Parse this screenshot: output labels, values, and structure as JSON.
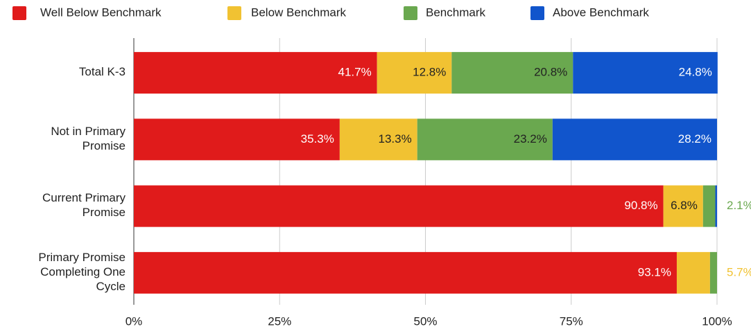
{
  "chart_data": {
    "type": "stacked-bar",
    "orientation": "horizontal",
    "categories": [
      "Total K-3",
      "Not in Primary\nPromise",
      "Current Primary\nPromise",
      "Primary Promise\nCompleting One\nCycle"
    ],
    "series": [
      {
        "name": "Well Below Benchmark",
        "color": "#e01b1b",
        "values": [
          41.7,
          35.3,
          90.8,
          93.1
        ],
        "value_labels": [
          "41.7%",
          "35.3%",
          "90.8%",
          "93.1%"
        ]
      },
      {
        "name": "Below Benchmark",
        "color": "#f1c232",
        "values": [
          12.8,
          13.3,
          6.8,
          5.7
        ],
        "value_labels": [
          "12.8%",
          "13.3%",
          "6.8%",
          "5.7%"
        ]
      },
      {
        "name": "Benchmark",
        "color": "#6aa84f",
        "values": [
          20.8,
          23.2,
          2.1,
          1.2
        ],
        "value_labels": [
          "20.8%",
          "23.2%",
          "2.1%",
          null
        ]
      },
      {
        "name": "Above Benchmark",
        "color": "#1155cc",
        "values": [
          24.8,
          28.2,
          0.3,
          0
        ],
        "value_labels": [
          "24.8%",
          "28.2%",
          null,
          null
        ]
      }
    ],
    "xlim": [
      0,
      100
    ],
    "xticks": [
      {
        "value": 0,
        "label": "0%"
      },
      {
        "value": 25,
        "label": "25%"
      },
      {
        "value": 50,
        "label": "50%"
      },
      {
        "value": 75,
        "label": "75%"
      },
      {
        "value": 100,
        "label": "100%"
      }
    ],
    "grid": true,
    "legend": "top"
  }
}
